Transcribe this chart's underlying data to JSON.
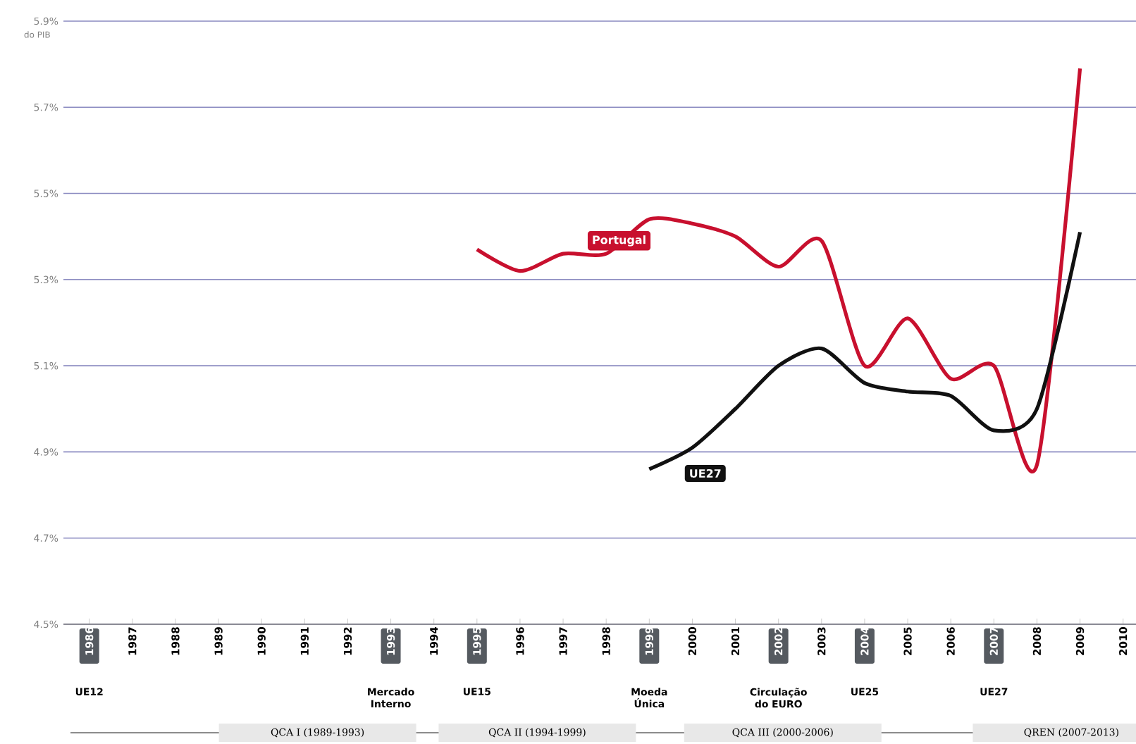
{
  "chart_data": {
    "type": "line",
    "ylabel": "do PIB",
    "x": [
      1995,
      1996,
      1997,
      1998,
      1999,
      2000,
      2001,
      2002,
      2003,
      2004,
      2005,
      2006,
      2007,
      2008,
      2009
    ],
    "series": [
      {
        "name": "Portugal",
        "color": "#c8102e",
        "values": [
          5.37,
          5.32,
          5.36,
          5.36,
          5.44,
          5.43,
          5.4,
          5.33,
          5.39,
          5.1,
          5.21,
          5.07,
          5.1,
          4.87,
          5.79
        ]
      },
      {
        "name": "UE27",
        "color": "#111111",
        "x": [
          1999,
          2000,
          2001,
          2002,
          2003,
          2004,
          2005,
          2006,
          2007,
          2008,
          2009
        ],
        "values": [
          4.86,
          4.91,
          5.0,
          5.1,
          5.14,
          5.06,
          5.04,
          5.03,
          4.95,
          5.0,
          5.41
        ]
      }
    ],
    "xlim": [
      1985.4,
      2010.3
    ],
    "xticks": [
      1986,
      1987,
      1988,
      1989,
      1990,
      1991,
      1992,
      1993,
      1994,
      1995,
      1996,
      1997,
      1998,
      1999,
      2000,
      2001,
      2002,
      2003,
      2004,
      2005,
      2006,
      2007,
      2008,
      2009,
      2010
    ],
    "ylim": [
      4.5,
      5.9
    ],
    "yticks": [
      {
        "value": 4.5,
        "label": "4.5%"
      },
      {
        "value": 4.7,
        "label": "4.7%"
      },
      {
        "value": 4.9,
        "label": "4.9%"
      },
      {
        "value": 5.1,
        "label": "5.1%"
      },
      {
        "value": 5.3,
        "label": "5.3%"
      },
      {
        "value": 5.5,
        "label": "5.5%"
      },
      {
        "value": 5.7,
        "label": "5.7%"
      },
      {
        "value": 5.9,
        "label": "5.9%"
      }
    ],
    "grid": "y",
    "line_style": "solid",
    "annotations": [
      "UE12",
      "Mercado Interno",
      "UE15",
      "Moeda Única",
      "Circulação do EURO",
      "UE25",
      "UE27",
      "QCA I (1989-1993)",
      "QCA II (1994-1999)",
      "QCA III (2000-2006)",
      "QREN (2007-2013)"
    ]
  }
}
